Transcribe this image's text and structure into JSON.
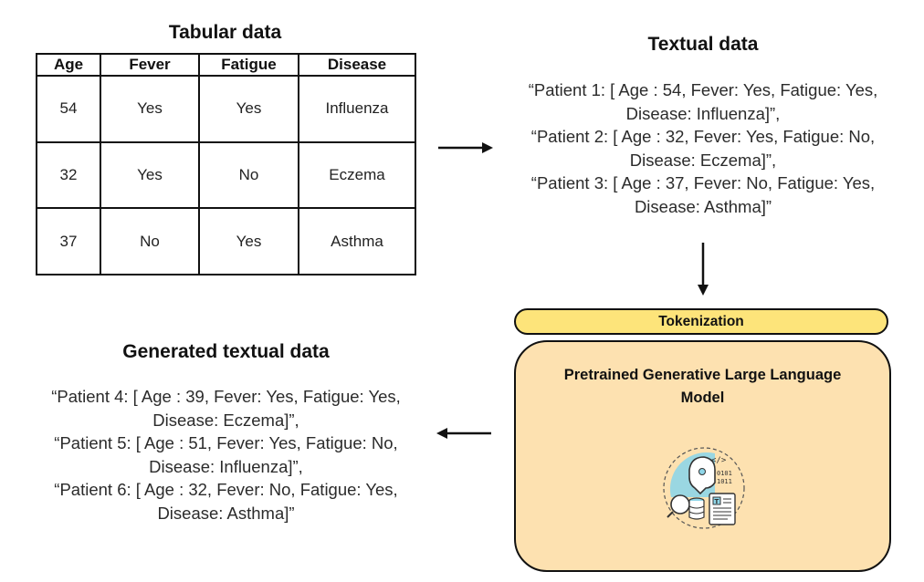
{
  "tabular": {
    "title": "Tabular data",
    "headers": [
      "Age",
      "Fever",
      "Fatigue",
      "Disease"
    ],
    "rows": [
      [
        "54",
        "Yes",
        "Yes",
        "Influenza"
      ],
      [
        "32",
        "Yes",
        "No",
        "Eczema"
      ],
      [
        "37",
        "No",
        "Yes",
        "Asthma"
      ]
    ]
  },
  "textual": {
    "title": "Textual data",
    "lines": [
      "“Patient 1: [ Age : 54, Fever: Yes, Fatigue: Yes,",
      "Disease: Influenza]”,",
      "“Patient 2: [ Age : 32, Fever: Yes, Fatigue: No,",
      "Disease: Eczema]”,",
      "“Patient 3: [ Age : 37, Fever: No, Fatigue: Yes,",
      "Disease: Asthma]”"
    ]
  },
  "tokenization": {
    "label": "Tokenization"
  },
  "model": {
    "title_line1": "Pretrained Generative Large Language",
    "title_line2": "Model",
    "icon": "ai-data-icon"
  },
  "generated": {
    "title": "Generated textual data",
    "lines": [
      "“Patient 4: [ Age : 39, Fever: Yes, Fatigue: Yes,",
      "Disease: Eczema]”,",
      "“Patient 5: [ Age : 51, Fever: Yes, Fatigue: No,",
      "Disease: Influenza]”,",
      "“Patient 6: [ Age : 32, Fever: No, Fatigue: Yes,",
      "Disease: Asthma]”"
    ]
  },
  "colors": {
    "tokenization_fill": "#fde47a",
    "model_fill": "#fde1b0",
    "icon_accent": "#8fd6e8"
  }
}
